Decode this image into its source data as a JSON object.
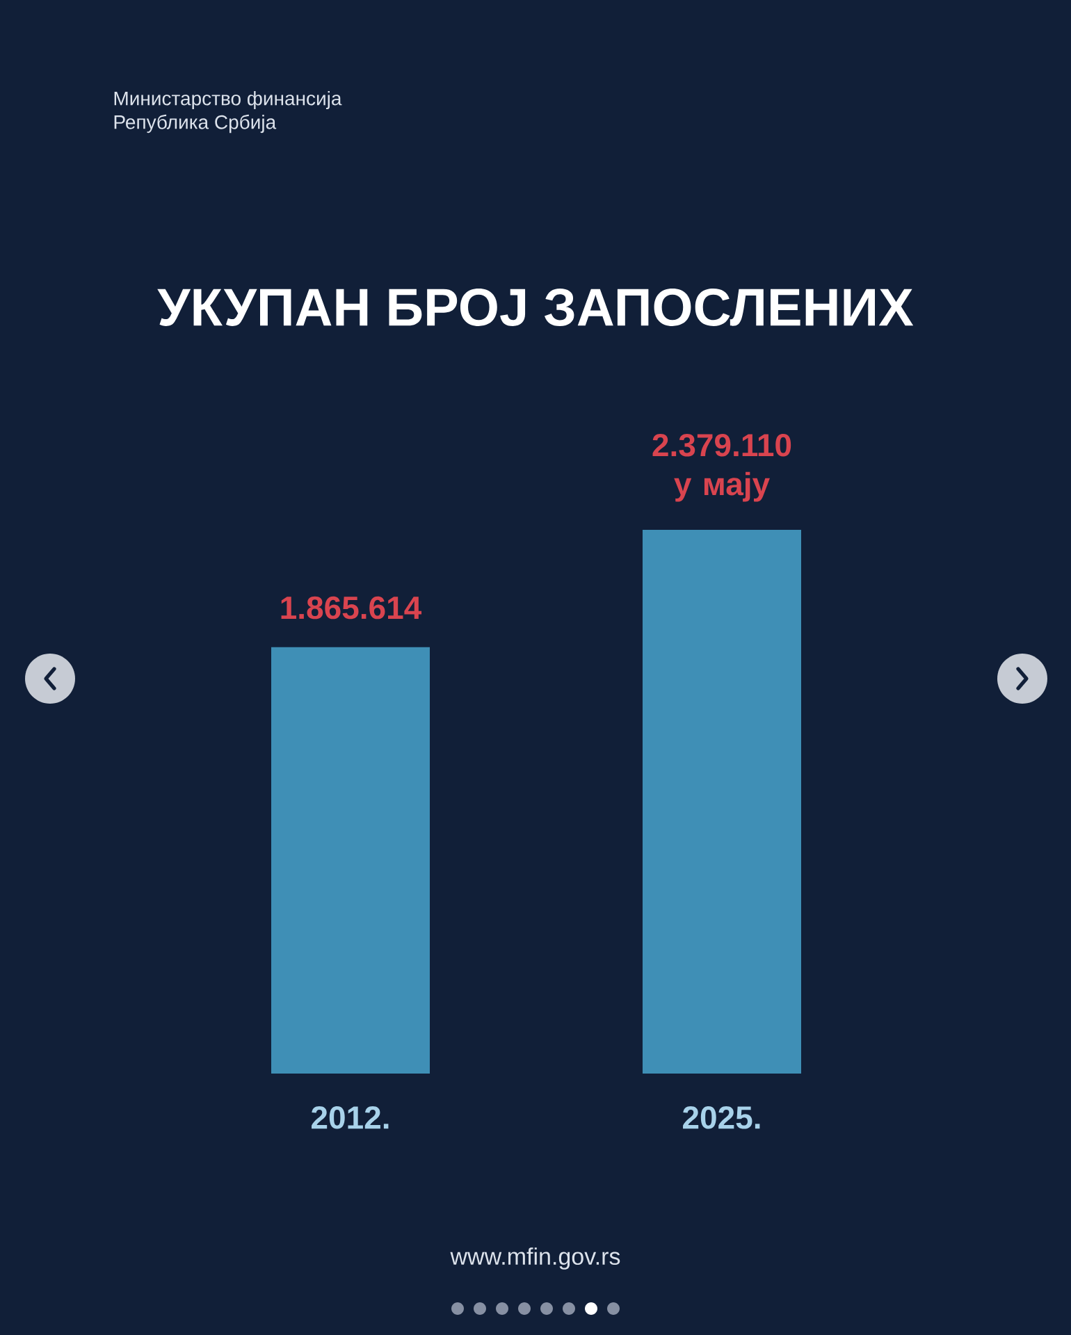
{
  "chart_data": {
    "type": "bar",
    "title": "УКУПАН БРОЈ ЗАПОСЛЕНИХ",
    "categories": [
      "2012.",
      "2025."
    ],
    "values": [
      1865614,
      2379110
    ],
    "color": "#3f8fb6",
    "value_labels": [
      "1.865.614",
      "2.379.110 у мају"
    ],
    "annotations": [
      "Министарство финансија",
      "Република Србија",
      "www.mfin.gov.rs"
    ]
  }
}
